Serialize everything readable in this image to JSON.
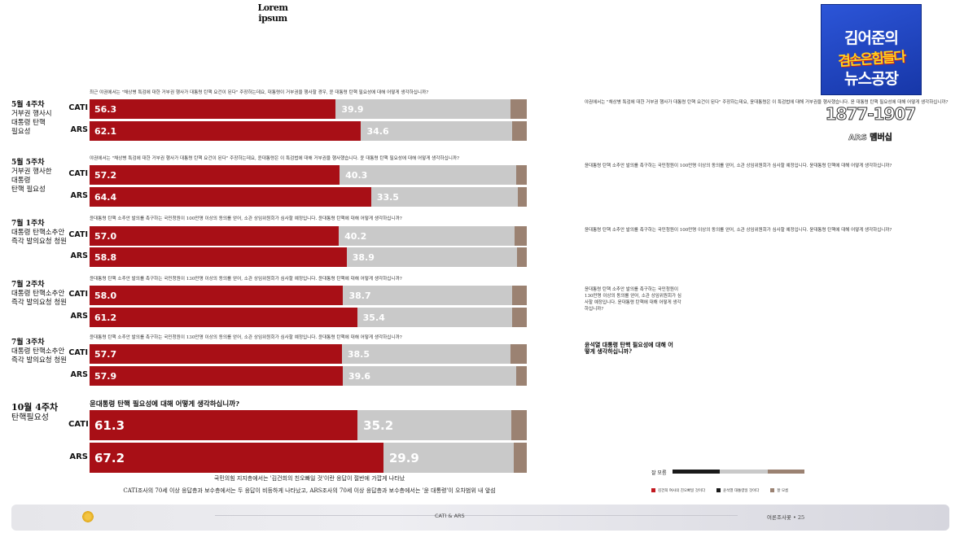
{
  "page_title": "Lorem ipsum",
  "chart_data": {
    "type": "bar",
    "stacked": true,
    "orientation": "horizontal",
    "series_names": [
      "",
      "",
      ""
    ],
    "colors": [
      "#a80f16",
      "#c9c9c9",
      "#9b8272"
    ],
    "sections": [
      {
        "label_bold": "5월 4주차",
        "label_rest": "거부권 행사시\n대통령 탄핵\n필요성",
        "question": "최근 야권에서는 \"채상병 특검에 대한 거부권 행사가 대통령 탄핵 요건이 된다\" 주장하는데요, 대통령이 거부권을 행사할 경우, 윤 대통령 탄핵 필요성에 대해 어떻게 생각하십니까?",
        "rows": [
          {
            "label": "CATI",
            "a": 56.3,
            "b": 39.9
          },
          {
            "label": "ARS",
            "a": 62.1,
            "b": 34.6
          }
        ]
      },
      {
        "label_bold": "5월 5주차",
        "label_rest": "거부권 행사한\n대통령\n탄핵 필요성",
        "question": "야권에서는 \"채상병 특검에 대한 거부권 행사가 대통령 탄핵 요건이 된다\" 주장하는데요, 윤대통령은 이 특검법에 대해 거부권을 행사했습니다. 윤 대통령 탄핵 필요성에 대해 어떻게 생각하십니까?",
        "rows": [
          {
            "label": "CATI",
            "a": 57.2,
            "b": 40.3
          },
          {
            "label": "ARS",
            "a": 64.4,
            "b": 33.5
          }
        ]
      },
      {
        "label_bold": "7월 1주차",
        "label_rest": "대통령 탄핵소추안\n즉각 발의요청 청원",
        "question": "윤대통령 탄핵 소추안 발의를 촉구하는 국민청원이 100만명 이상의 동의를 얻어, 소관 상임위원회가 심사할 예정입니다. 윤대통령 탄핵에 대해 어떻게 생각하십니까?",
        "rows": [
          {
            "label": "CATI",
            "a": 57.0,
            "b": 40.2
          },
          {
            "label": "ARS",
            "a": 58.8,
            "b": 38.9
          }
        ]
      },
      {
        "label_bold": "7월 2주차",
        "label_rest": "대통령 탄핵소추안\n즉각 발의요청 청원",
        "question": "윤대통령 탄핵 소추안 발의를 촉구하는 국민청원이 130만명 이상의 동의를 얻어, 소관 상임위원회가 심사할 예정입니다. 윤대통령 탄핵에 대해 어떻게 생각하십니까?",
        "rows": [
          {
            "label": "CATI",
            "a": 58.0,
            "b": 38.7
          },
          {
            "label": "ARS",
            "a": 61.2,
            "b": 35.4
          }
        ]
      },
      {
        "label_bold": "7월 3주차",
        "label_rest": "대통령 탄핵소추안\n즉각 발의요청 청원",
        "question": "윤대통령 탄핵 소추안 발의를 촉구하는 국민청원이 130만명 이상의 동의를 얻어, 소관 상임위원회가 심사할 예정입니다. 윤대통령 탄핵에 대해 어떻게 생각하십니까?",
        "rows": [
          {
            "label": "CATI",
            "a": 57.7,
            "b": 38.5
          },
          {
            "label": "ARS",
            "a": 57.9,
            "b": 39.6
          }
        ]
      },
      {
        "label_bold": "10월 4주차",
        "label_rest": "탄핵필요성",
        "question": "윤대통령 탄핵 필요성에 대해 어떻게 생각하십니까?",
        "big": true,
        "rows": [
          {
            "label": "CATI",
            "a": 61.3,
            "b": 35.2
          },
          {
            "label": "ARS",
            "a": 67.2,
            "b": 29.9
          }
        ]
      }
    ]
  },
  "footnotes": [
    "국민의힘 지지층에서는 '김건희의 친오빠일 것'이란 응답이 절반에 가깝게 나타났",
    "CATI조사의 70세 이상 응답층과 보수층에서는 두 응답이 비등하게 나타났고, ARS조사의 70세 이상 응답층과 보수층에서는 '윤 대통령'이 오차범위 내 앞섬"
  ],
  "right_texts": [
    "야권에서는 \"채상병 특검에 대한 거부권 행사가 대통령 탄핵 요건이 된다\" 주장하는데요, 윤대통령은 이 특검법에 대해 거부권을 행사했습니다. 윤 대통령 탄핵 필요성에 대해 어떻게 생각하십니까?",
    "윤대통령 탄핵 소추안 발의를 촉구하는 국민청원이 100만명 이상의 동의를 얻어, 소관 상임위원회가 심사할 예정입니다. 윤대통령 탄핵에 대해 어떻게 생각하십니까?",
    "윤대통령 탄핵 소추안 발의를 촉구하는 국민청원이 100만명 이상의 동의를 얻어, 소관 상임위원회가 심사할 예정입니다. 윤대통령 탄핵에 대해 어떻게 생각하십니까?",
    "윤대통령 탄핵 소추안 발의를 촉구하는 국민청원이 130만명 이상의 동의를 얻어, 소관 상임위원회가 심사할 예정입니다. 윤대통령 탄핵에 대해 어떻게 생각하십니까?",
    "윤석열 대통령 탄핵 필요성에 대해 어떻게 생각하십니까?"
  ],
  "logo": {
    "line1": "김어준의",
    "line2": "겸손은힘들다",
    "line3": "뉴스공장"
  },
  "years": "1877-1907",
  "ars_member": "ARS 멤버십",
  "mini_chart": {
    "label": "잘 모름",
    "legend": [
      "김건희 여사의 친오빠일 것이다",
      "윤석열 대통령일 것이다",
      "잘 모름"
    ]
  },
  "footer": {
    "center": "CATI & ARS",
    "right": "여론조사꽃 • 25"
  }
}
